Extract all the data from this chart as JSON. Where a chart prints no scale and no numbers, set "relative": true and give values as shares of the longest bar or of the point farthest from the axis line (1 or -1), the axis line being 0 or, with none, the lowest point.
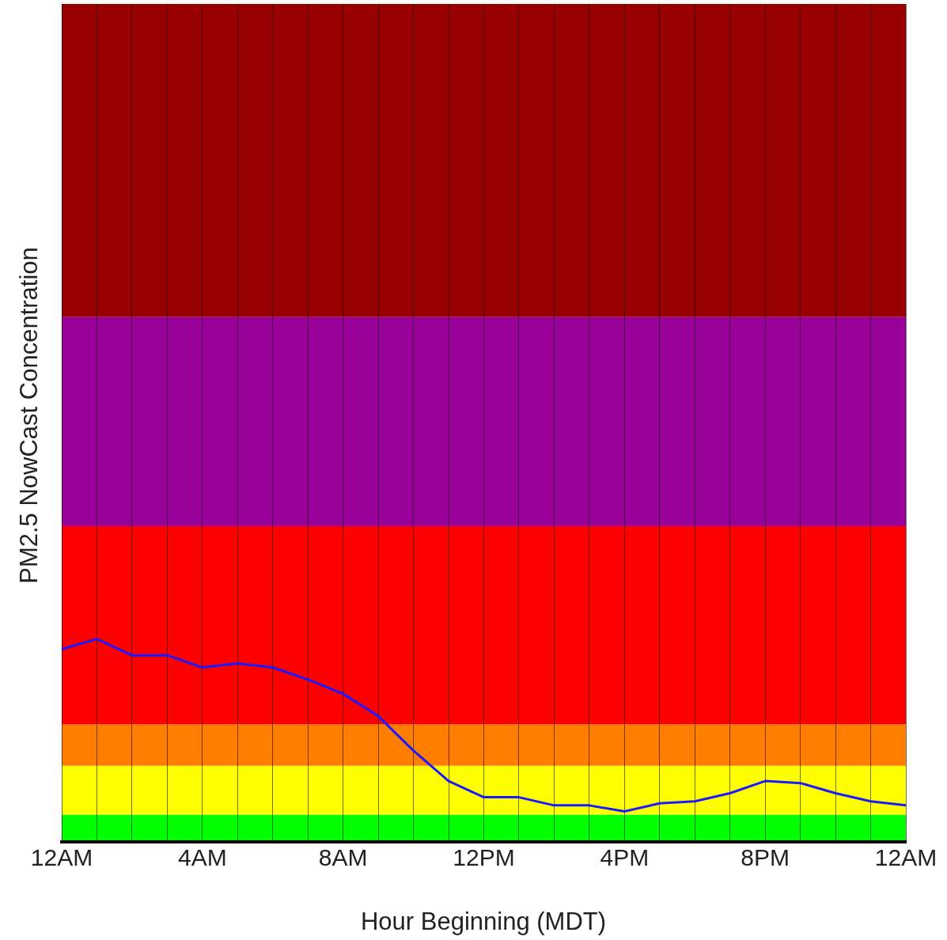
{
  "chart_data": {
    "type": "line",
    "relative": true,
    "xlabel": "Hour Beginning (MDT)",
    "ylabel": "PM2.5 NowCast Concentration",
    "categories": [
      "12AM",
      null,
      null,
      null,
      "4AM",
      null,
      null,
      null,
      "8AM",
      null,
      null,
      null,
      "12PM",
      null,
      null,
      null,
      "4PM",
      null,
      null,
      null,
      "8PM",
      null,
      null,
      null,
      "12AM"
    ],
    "series": [
      {
        "color": "#1a1aff",
        "values": [
          0.95,
          1,
          0.92,
          0.92,
          0.86,
          0.88,
          0.86,
          0.8,
          0.73,
          0.62,
          0.45,
          0.3,
          0.22,
          0.22,
          0.18,
          0.18,
          0.15,
          0.19,
          0.2,
          0.24,
          0.3,
          0.29,
          0.24,
          0.2,
          0.18
        ]
      }
    ],
    "bands": [
      {
        "axis": "y",
        "from": 0,
        "to": 0.135,
        "color": "#00ff00"
      },
      {
        "axis": "y",
        "from": 0.135,
        "to": 0.375,
        "color": "#ffff00"
      },
      {
        "axis": "y",
        "from": 0.375,
        "to": 0.579,
        "color": "#ff7e00"
      },
      {
        "axis": "y",
        "from": 0.579,
        "to": 1.556,
        "color": "#ff0000"
      },
      {
        "axis": "y",
        "from": 1.556,
        "to": 2.587,
        "color": "#990099"
      },
      {
        "axis": "y",
        "from": 2.587,
        "to": 4.131,
        "color": "#990000"
      }
    ],
    "grid": "x",
    "legend": false,
    "marker": "none",
    "line_style": "solid"
  }
}
